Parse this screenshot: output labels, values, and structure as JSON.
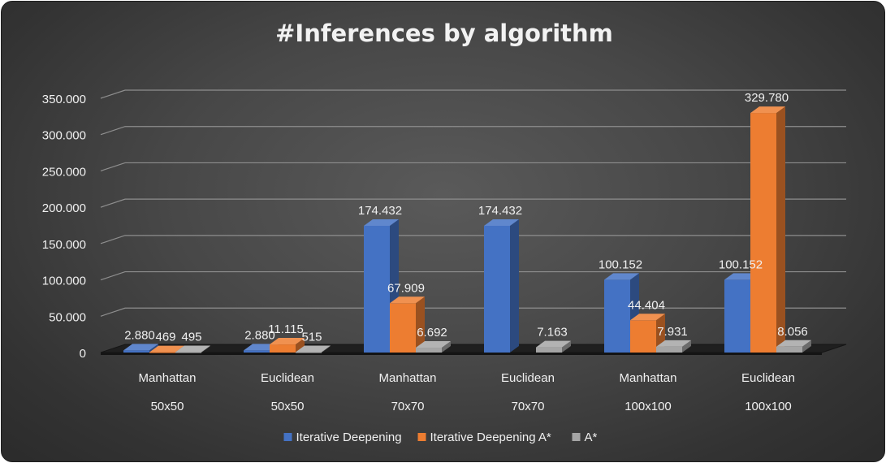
{
  "chart_data": {
    "type": "bar",
    "title": "#Inferences by algorithm",
    "categories": [
      [
        "Manhattan",
        "50x50"
      ],
      [
        "Euclidean",
        "50x50"
      ],
      [
        "Manhattan",
        "70x70"
      ],
      [
        "Euclidean",
        "70x70"
      ],
      [
        "Manhattan",
        "100x100"
      ],
      [
        "Euclidean",
        "100x100"
      ]
    ],
    "series": [
      {
        "name": "Iterative Deepening",
        "color": "#4472c4",
        "values": [
          2880,
          2880,
          174432,
          174432,
          100152,
          100152
        ],
        "labels": [
          "2.880",
          "2.880",
          "174.432",
          "174.432",
          "100.152",
          "100.152"
        ]
      },
      {
        "name": "Iterative Deepening A*",
        "color": "#ed7d31",
        "values": [
          469,
          11115,
          67909,
          null,
          44404,
          329780
        ],
        "labels": [
          "469",
          "11.115",
          "67.909",
          "",
          "44.404",
          "329.780"
        ]
      },
      {
        "name": "A*",
        "color": "#a5a5a5",
        "values": [
          495,
          515,
          6692,
          7163,
          7931,
          8056
        ],
        "labels": [
          "495",
          "515",
          "6.692",
          "7.163",
          "7.931",
          "8.056"
        ]
      }
    ],
    "ylim": [
      0,
      350000
    ],
    "yticks": [
      0,
      50000,
      100000,
      150000,
      200000,
      250000,
      300000,
      350000
    ],
    "ytick_labels": [
      "0",
      "50.000",
      "100.000",
      "150.000",
      "200.000",
      "250.000",
      "300.000",
      "350.000"
    ],
    "grid": true,
    "legend_position": "bottom",
    "style": "3d-clustered-column"
  }
}
